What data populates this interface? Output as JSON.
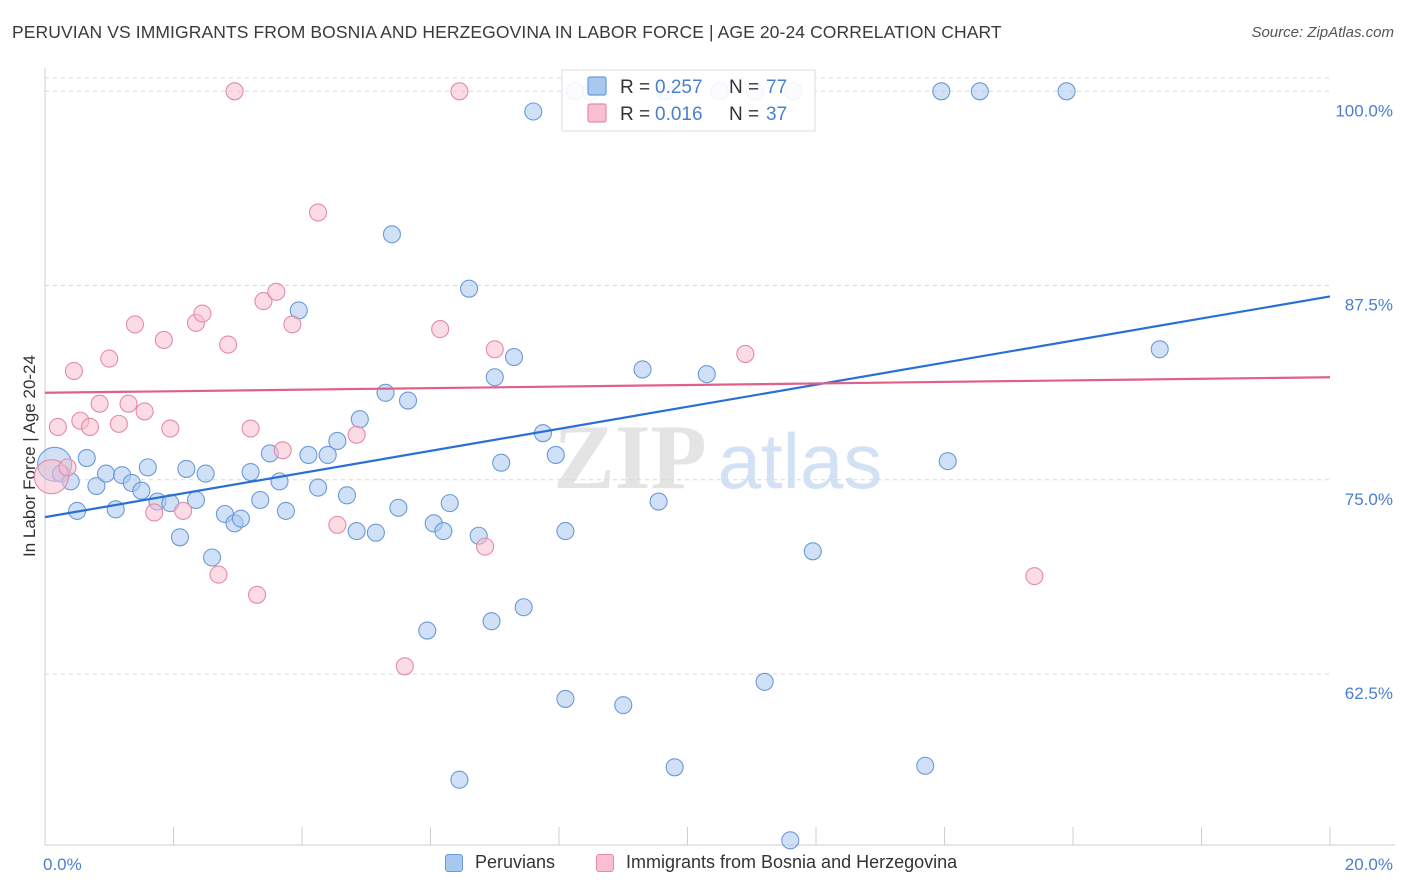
{
  "title": "PERUVIAN VS IMMIGRANTS FROM BOSNIA AND HERZEGOVINA IN LABOR FORCE | AGE 20-24 CORRELATION CHART",
  "source": "Source: ZipAtlas.com",
  "watermark": {
    "zip": "ZIP",
    "atlas": "atlas"
  },
  "colors": {
    "blue_fill": "#a9c8f0",
    "blue_stroke": "#6a9ad8",
    "blue_line": "#2a6fd6",
    "pink_fill": "#f7bfd0",
    "pink_stroke": "#e58aa8",
    "pink_line": "#e0608a",
    "tick_label": "#4a7fd0",
    "grid": "#d8d8d8"
  },
  "legend_top": {
    "rows": [
      {
        "series": "Peruvians",
        "r_label": "R =",
        "r_value": "0.257",
        "n_label": "N =",
        "n_value": "77"
      },
      {
        "series": "Immigrants from Bosnia and Herzegovina",
        "r_label": "R =",
        "r_value": "0.016",
        "n_label": "N =",
        "n_value": "37"
      }
    ]
  },
  "chart_data": {
    "type": "scatter",
    "xlabel": "",
    "ylabel": "In Labor Force | Age 20-24",
    "xlim": [
      0,
      20
    ],
    "ylim": [
      51.5,
      101.5
    ],
    "x_tick_labels": [
      {
        "value": 0,
        "label": "0.0%"
      },
      {
        "value": 20,
        "label": "20.0%"
      }
    ],
    "x_minor_ticks": [
      0,
      2,
      4,
      6,
      8,
      10,
      12,
      14,
      16,
      18,
      20
    ],
    "y_tick_labels": [
      {
        "value": 100,
        "label": "100.0%"
      },
      {
        "value": 87.5,
        "label": "87.5%"
      },
      {
        "value": 75,
        "label": "75.0%"
      },
      {
        "value": 62.5,
        "label": "62.5%"
      }
    ],
    "grid": true,
    "legend_placement": "top-center",
    "series": [
      {
        "name": "Peruvians",
        "color": "blue",
        "trend": {
          "x": [
            0,
            20
          ],
          "y": [
            72.6,
            86.8
          ]
        },
        "points": [
          [
            0.15,
            76.0,
            "L"
          ],
          [
            0.25,
            75.4
          ],
          [
            0.4,
            74.9
          ],
          [
            0.5,
            73.0
          ],
          [
            0.65,
            76.4
          ],
          [
            0.8,
            74.6
          ],
          [
            0.95,
            75.4
          ],
          [
            1.1,
            73.1
          ],
          [
            1.2,
            75.3
          ],
          [
            1.35,
            74.8
          ],
          [
            1.5,
            74.3
          ],
          [
            1.6,
            75.8
          ],
          [
            1.75,
            73.6
          ],
          [
            1.95,
            73.5
          ],
          [
            2.1,
            71.3
          ],
          [
            2.2,
            75.7
          ],
          [
            2.35,
            73.7
          ],
          [
            2.5,
            75.4
          ],
          [
            2.6,
            70.0
          ],
          [
            2.8,
            72.8
          ],
          [
            2.95,
            72.2
          ],
          [
            3.05,
            72.5
          ],
          [
            3.2,
            75.5
          ],
          [
            3.35,
            73.7
          ],
          [
            3.5,
            76.7
          ],
          [
            3.65,
            74.9
          ],
          [
            3.75,
            73.0
          ],
          [
            3.95,
            85.9
          ],
          [
            4.1,
            76.6
          ],
          [
            4.25,
            74.5
          ],
          [
            4.4,
            76.6
          ],
          [
            4.55,
            77.5
          ],
          [
            4.7,
            74.0
          ],
          [
            4.85,
            71.7
          ],
          [
            4.9,
            78.9
          ],
          [
            5.15,
            71.6
          ],
          [
            5.3,
            80.6
          ],
          [
            5.4,
            90.8
          ],
          [
            5.5,
            73.2
          ],
          [
            5.65,
            80.1
          ],
          [
            5.95,
            65.3
          ],
          [
            6.05,
            72.2
          ],
          [
            6.2,
            71.7
          ],
          [
            6.3,
            73.5
          ],
          [
            6.45,
            55.7
          ],
          [
            6.6,
            87.3
          ],
          [
            6.75,
            71.4
          ],
          [
            6.95,
            65.9
          ],
          [
            7.0,
            81.6
          ],
          [
            7.1,
            76.1
          ],
          [
            7.3,
            82.9
          ],
          [
            7.45,
            66.8
          ],
          [
            7.6,
            98.7
          ],
          [
            7.75,
            78.0
          ],
          [
            7.95,
            76.6
          ],
          [
            8.1,
            71.7
          ],
          [
            8.1,
            60.9
          ],
          [
            8.25,
            100.0
          ],
          [
            8.5,
            100.0
          ],
          [
            9.0,
            60.5
          ],
          [
            9.3,
            82.1
          ],
          [
            9.8,
            56.5
          ],
          [
            9.65,
            100.0
          ],
          [
            9.55,
            73.6
          ],
          [
            10.3,
            81.8
          ],
          [
            10.5,
            100.0
          ],
          [
            11.05,
            100.0
          ],
          [
            11.2,
            62.0
          ],
          [
            11.65,
            100.0
          ],
          [
            11.95,
            70.4
          ],
          [
            11.6,
            51.8
          ],
          [
            13.7,
            56.6
          ],
          [
            13.95,
            100.0
          ],
          [
            14.05,
            76.2
          ],
          [
            14.55,
            100.0
          ],
          [
            15.9,
            100.0
          ],
          [
            17.35,
            83.4
          ]
        ]
      },
      {
        "name": "Immigrants from Bosnia and Herzegovina",
        "color": "pink",
        "trend": {
          "x": [
            0,
            20
          ],
          "y": [
            80.6,
            81.6
          ]
        },
        "points": [
          [
            0.1,
            75.2,
            "L"
          ],
          [
            0.2,
            78.4
          ],
          [
            0.35,
            75.8
          ],
          [
            0.45,
            82.0
          ],
          [
            0.55,
            78.8
          ],
          [
            0.7,
            78.4
          ],
          [
            0.85,
            79.9
          ],
          [
            1.0,
            82.8
          ],
          [
            1.15,
            78.6
          ],
          [
            1.3,
            79.9
          ],
          [
            1.4,
            85.0
          ],
          [
            1.55,
            79.4
          ],
          [
            1.7,
            72.9
          ],
          [
            1.85,
            84.0
          ],
          [
            1.95,
            78.3
          ],
          [
            2.15,
            73.0
          ],
          [
            2.35,
            85.1
          ],
          [
            2.45,
            85.7
          ],
          [
            2.7,
            68.9
          ],
          [
            2.85,
            83.7
          ],
          [
            2.95,
            100.0
          ],
          [
            3.2,
            78.3
          ],
          [
            3.3,
            67.6
          ],
          [
            3.4,
            86.5
          ],
          [
            3.6,
            87.1
          ],
          [
            3.7,
            76.9
          ],
          [
            3.85,
            85.0
          ],
          [
            4.25,
            92.2
          ],
          [
            4.55,
            72.1
          ],
          [
            4.85,
            77.9
          ],
          [
            5.6,
            63.0
          ],
          [
            6.15,
            84.7
          ],
          [
            6.45,
            100.0
          ],
          [
            6.85,
            70.7
          ],
          [
            7.0,
            83.4
          ],
          [
            10.9,
            83.1
          ],
          [
            15.4,
            68.8
          ]
        ]
      }
    ]
  },
  "legend_bottom": [
    "Peruvians",
    "Immigrants from Bosnia and Herzegovina"
  ]
}
